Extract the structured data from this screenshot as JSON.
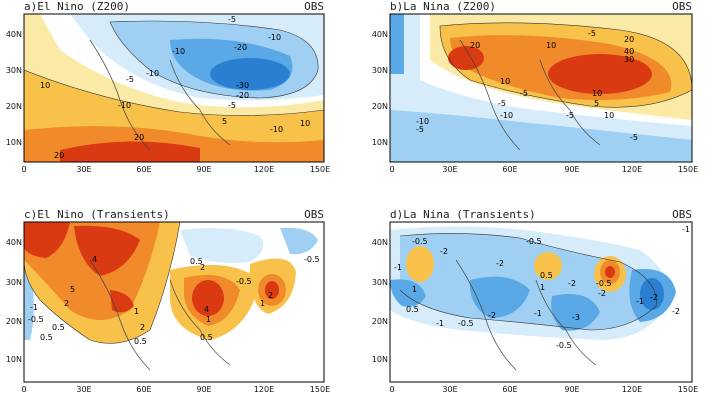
{
  "panels": [
    {
      "title": "a)El Nino (Z200)",
      "tag": "OBS",
      "y_ticks": [
        "40N",
        "30N",
        "20N",
        "10N"
      ],
      "x_ticks": [
        "0",
        "30E",
        "60E",
        "90E",
        "120E",
        "150E"
      ],
      "contour_labels": [
        "-5",
        "-10",
        "-20",
        "-10",
        "-5",
        "-10",
        "-10",
        "-30",
        "-20",
        "-5",
        "-10",
        "10",
        "5",
        "20",
        "20",
        "10"
      ]
    },
    {
      "title": "b)La Nina (Z200)",
      "tag": "OBS",
      "y_ticks": [
        "40N",
        "30N",
        "20N",
        "10N"
      ],
      "x_ticks": [
        "0",
        "30E",
        "60E",
        "90E",
        "120E",
        "150E"
      ],
      "contour_labels": [
        "20",
        "10",
        "-5",
        "20",
        "40",
        "30",
        "10",
        "-5",
        "-10",
        "-5",
        "-10",
        "-5",
        "10",
        "10",
        "5",
        "-5",
        "-5"
      ]
    },
    {
      "title": "c)El Nino (Transients)",
      "tag": "OBS",
      "y_ticks": [
        "40N",
        "30N",
        "20N",
        "10N"
      ],
      "x_ticks": [
        "0",
        "30E",
        "60E",
        "90E",
        "120E",
        "150E"
      ],
      "contour_labels": [
        "4",
        "-1",
        "-0.5",
        "0.5",
        "5",
        "2",
        "1",
        "0.5",
        "0.5",
        "2",
        "4",
        "0.5",
        "-0.5",
        "2",
        "1",
        "1",
        "-0.5",
        "0.5",
        "2"
      ]
    },
    {
      "title": "d)La Nina (Transients)",
      "tag": "OBS",
      "y_ticks": [
        "40N",
        "30N",
        "20N",
        "10N"
      ],
      "x_ticks": [
        "0",
        "30E",
        "60E",
        "90E",
        "120E",
        "150E"
      ],
      "contour_labels": [
        "-0.5",
        "-2",
        "-1",
        "1",
        "0.5",
        "-0.5",
        "-2",
        "0.5",
        "-2",
        "1",
        "-0.5",
        "-1",
        "-0.5",
        "-2",
        "-1",
        "-3",
        "-2",
        "-1",
        "-0.5",
        "-2",
        "-1",
        "-2"
      ]
    }
  ],
  "colors": {
    "strong_positive": "#d93a12",
    "positive": "#f08a2a",
    "weak_positive": "#f8c24a",
    "faint_positive": "#fbe9a6",
    "faint_negative": "#d6ecfb",
    "weak_negative": "#9fd0f3",
    "negative": "#5aa8e6",
    "strong_negative": "#2a7fd0"
  }
}
